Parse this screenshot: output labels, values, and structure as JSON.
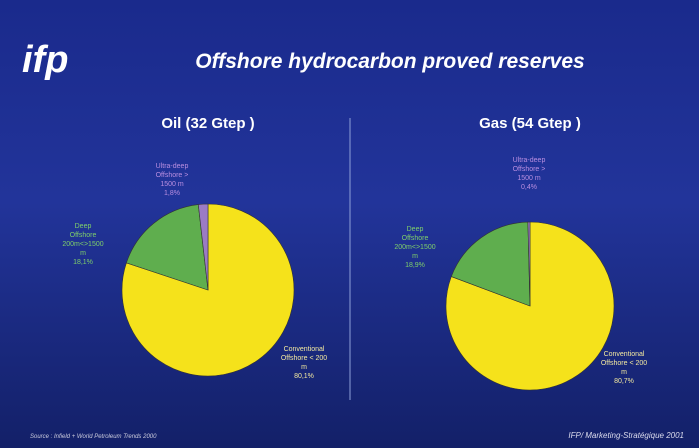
{
  "header": {
    "logo": "ifp",
    "title": "Offshore   hydrocarbon proved reserves"
  },
  "chart_data": [
    {
      "type": "pie",
      "title": "Oil (32  Gtep )",
      "categories": [
        "Conventional Offshore < 200 m",
        "Deep Offshore 200m<>1500 m",
        "Ultra-deep Offshore > 1500 m"
      ],
      "values": [
        80.1,
        18.1,
        1.8
      ],
      "value_labels": [
        "80,1%",
        "18,1%",
        "1,8%"
      ],
      "colors": [
        "#f5e21b",
        "#5fae4e",
        "#9b7bc4"
      ]
    },
    {
      "type": "pie",
      "title": "Gas (54  Gtep )",
      "categories": [
        "Conventional Offshore < 200 m",
        "Deep Offshore 200m<>1500 m",
        "Ultra-deep Offshore > 1500 m"
      ],
      "values": [
        80.7,
        18.9,
        0.4
      ],
      "value_labels": [
        "80,7%",
        "18,9%",
        "0,4%"
      ],
      "colors": [
        "#f5e21b",
        "#5fae4e",
        "#9b7bc4"
      ]
    }
  ],
  "footer": {
    "source": "Source :  Infield  + World  Petroleum  Trends 2000",
    "credit": "IFP/ Marketing-Stratégique 2001"
  }
}
